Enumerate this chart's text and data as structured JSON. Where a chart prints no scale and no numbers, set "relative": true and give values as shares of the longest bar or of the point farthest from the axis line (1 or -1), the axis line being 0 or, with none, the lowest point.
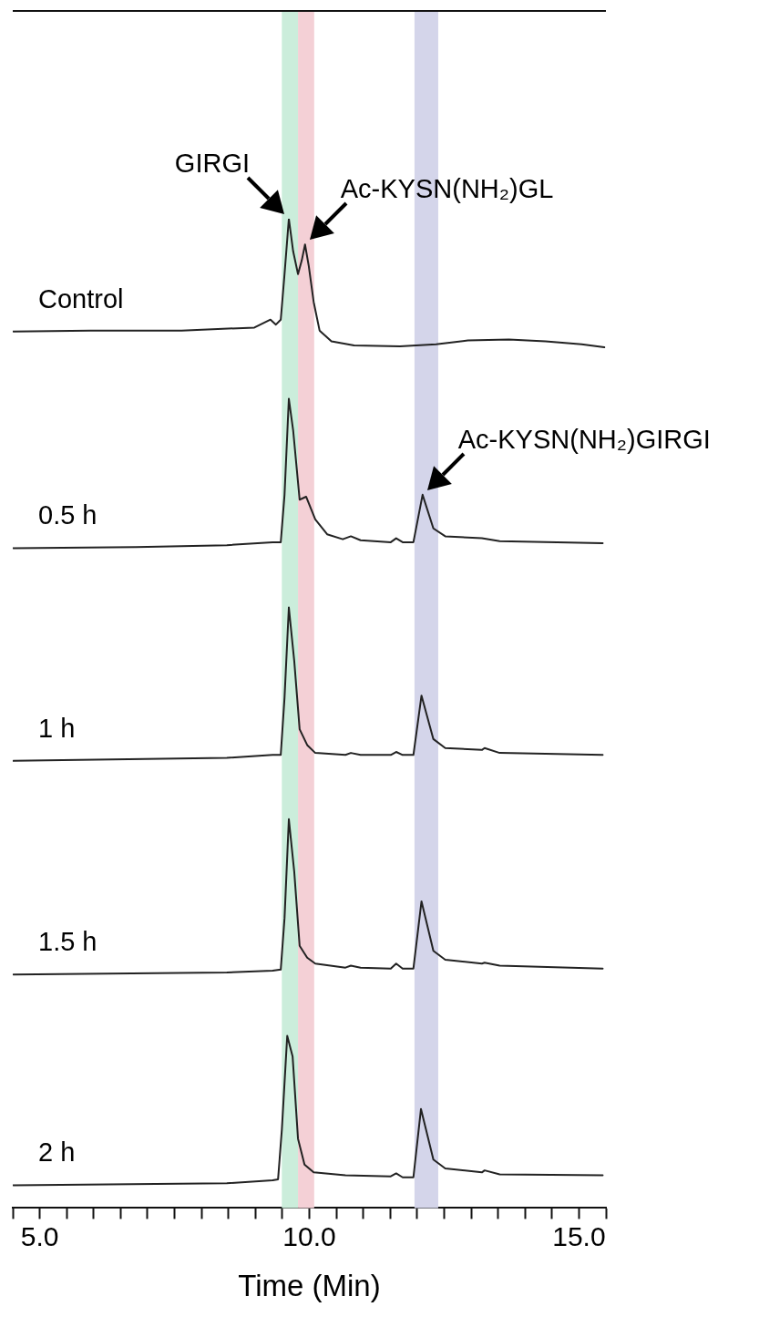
{
  "chart_data": {
    "type": "line",
    "relative": true,
    "xlim": [
      4.5,
      15.5
    ],
    "xlabel": "Time (Min)",
    "legend": false,
    "grid": false,
    "marker": "none",
    "line_style": "solid",
    "xticks": [
      {
        "value": 4.5,
        "label": null
      },
      {
        "value": 5,
        "label": "5.0"
      },
      {
        "value": 5.5,
        "label": null
      },
      {
        "value": 6,
        "label": null
      },
      {
        "value": 6.5,
        "label": null
      },
      {
        "value": 7,
        "label": null
      },
      {
        "value": 7.5,
        "label": null
      },
      {
        "value": 8,
        "label": null
      },
      {
        "value": 8.5,
        "label": null
      },
      {
        "value": 9,
        "label": null
      },
      {
        "value": 9.5,
        "label": null
      },
      {
        "value": 10,
        "label": "10.0"
      },
      {
        "value": 10.5,
        "label": null
      },
      {
        "value": 11,
        "label": null
      },
      {
        "value": 11.5,
        "label": null
      },
      {
        "value": 12,
        "label": null
      },
      {
        "value": 12.5,
        "label": null
      },
      {
        "value": 13,
        "label": null
      },
      {
        "value": 13.5,
        "label": null
      },
      {
        "value": 14,
        "label": null
      },
      {
        "value": 14.5,
        "label": null
      },
      {
        "value": 15,
        "label": "15.0"
      },
      {
        "value": 15.5,
        "label": null
      }
    ],
    "bands": [
      {
        "axis": "x",
        "from": 9.49,
        "to": 9.79,
        "color": "#cbeddb"
      },
      {
        "axis": "x",
        "from": 9.79,
        "to": 10.09,
        "color": "#f4d0d6"
      },
      {
        "axis": "x",
        "from": 11.95,
        "to": 12.39,
        "color": "#d4d5ea"
      }
    ],
    "annotations": [
      {
        "text": "GIRGI",
        "x": 9.62,
        "y": 1.0
      },
      {
        "text": "Ac-KYSN(NH₂)GL",
        "x": 9.92,
        "y": 0.974
      },
      {
        "text": "Ac-KYSN(NH₂)GIRGI",
        "x": 12.1,
        "y": 0.721
      }
    ],
    "series": [
      {
        "name": "Control",
        "color": "#222222",
        "x": [
          4.51,
          5.94,
          7.63,
          8.98,
          9.28,
          9.38,
          9.47,
          9.54,
          9.62,
          9.7,
          9.79,
          9.86,
          9.92,
          9.99,
          10.08,
          10.19,
          10.41,
          10.83,
          11.68,
          12.35,
          12.94,
          13.7,
          14.38,
          15.05,
          15.47
        ],
        "values": [
          0.886,
          0.887,
          0.887,
          0.89,
          0.898,
          0.893,
          0.898,
          0.944,
          1.0,
          0.967,
          0.944,
          0.958,
          0.974,
          0.952,
          0.916,
          0.887,
          0.876,
          0.872,
          0.871,
          0.873,
          0.877,
          0.878,
          0.876,
          0.873,
          0.87
        ]
      },
      {
        "name": "0.5 h",
        "color": "#222222",
        "x": [
          4.51,
          6.79,
          8.47,
          9.32,
          9.47,
          9.54,
          9.62,
          9.7,
          9.82,
          9.94,
          10.11,
          10.33,
          10.62,
          10.77,
          10.95,
          11.51,
          11.61,
          11.73,
          11.93,
          12.1,
          12.3,
          12.52,
          13.2,
          13.53,
          15.44
        ],
        "values": [
          0.667,
          0.668,
          0.67,
          0.673,
          0.673,
          0.721,
          0.818,
          0.786,
          0.716,
          0.719,
          0.696,
          0.681,
          0.676,
          0.679,
          0.675,
          0.673,
          0.677,
          0.673,
          0.673,
          0.721,
          0.687,
          0.679,
          0.677,
          0.674,
          0.672
        ]
      },
      {
        "name": "1 h",
        "color": "#222222",
        "x": [
          4.51,
          8.47,
          9.32,
          9.47,
          9.54,
          9.62,
          9.72,
          9.82,
          9.96,
          10.11,
          10.67,
          10.77,
          10.95,
          11.51,
          11.61,
          11.73,
          11.93,
          12.08,
          12.3,
          12.52,
          13.2,
          13.25,
          13.53,
          15.44
        ],
        "values": [
          0.452,
          0.455,
          0.458,
          0.458,
          0.516,
          0.607,
          0.553,
          0.484,
          0.468,
          0.46,
          0.458,
          0.46,
          0.458,
          0.458,
          0.461,
          0.458,
          0.458,
          0.518,
          0.474,
          0.465,
          0.463,
          0.465,
          0.46,
          0.458
        ]
      },
      {
        "name": "1.5 h",
        "color": "#222222",
        "x": [
          4.51,
          8.47,
          9.32,
          9.47,
          9.54,
          9.62,
          9.72,
          9.82,
          9.96,
          10.11,
          10.67,
          10.77,
          10.95,
          11.51,
          11.61,
          11.73,
          11.93,
          12.08,
          12.3,
          12.52,
          13.2,
          13.25,
          13.53,
          15.44
        ],
        "values": [
          0.236,
          0.238,
          0.24,
          0.241,
          0.293,
          0.393,
          0.34,
          0.265,
          0.253,
          0.247,
          0.243,
          0.245,
          0.243,
          0.242,
          0.247,
          0.242,
          0.242,
          0.31,
          0.26,
          0.251,
          0.247,
          0.248,
          0.245,
          0.242
        ]
      },
      {
        "name": "2 h",
        "color": "#222222",
        "x": [
          4.51,
          8.47,
          9.32,
          9.42,
          9.49,
          9.59,
          9.69,
          9.79,
          9.91,
          10.08,
          10.67,
          11.51,
          11.61,
          11.73,
          11.93,
          12.07,
          12.3,
          12.52,
          13.2,
          13.25,
          13.53,
          15.44
        ],
        "values": [
          0.023,
          0.025,
          0.028,
          0.029,
          0.079,
          0.174,
          0.153,
          0.07,
          0.044,
          0.036,
          0.033,
          0.032,
          0.035,
          0.031,
          0.031,
          0.1,
          0.049,
          0.04,
          0.036,
          0.038,
          0.034,
          0.033
        ]
      }
    ]
  }
}
